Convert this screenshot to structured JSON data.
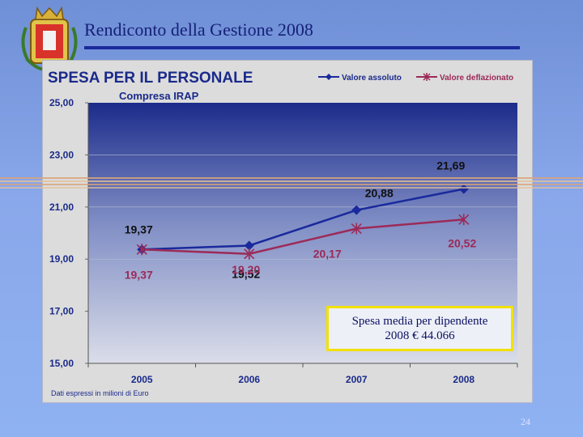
{
  "slide": {
    "title": "Rendiconto della Gestione 2008",
    "page_number": "24"
  },
  "info_box": {
    "line1": "Spesa media per dipendente",
    "line2": "2008 € 44.066"
  },
  "chart_data": {
    "type": "line",
    "title": "SPESA PER IL PERSONALE",
    "subtitle": "Compresa IRAP",
    "note": "Dati espressi in milioni di Euro",
    "categories": [
      "2005",
      "2006",
      "2007",
      "2008"
    ],
    "y_ticks": [
      "25,00",
      "23,00",
      "21,00",
      "19,00",
      "17,00",
      "15,00"
    ],
    "ylim": [
      15,
      25
    ],
    "legend_position": "top-right",
    "series": [
      {
        "name": "Valore assoluto",
        "values": [
          19.37,
          19.52,
          20.88,
          21.69
        ],
        "labels": [
          "19,37",
          "19,52",
          "20,88",
          "21,69"
        ],
        "color": "#1a2a9c",
        "marker": "diamond"
      },
      {
        "name": "Valore deflazionato",
        "values": [
          19.37,
          19.2,
          20.17,
          20.52
        ],
        "labels": [
          "19,37",
          "19,20",
          "20,17",
          "20,52"
        ],
        "color": "#9c2a58",
        "marker": "asterisk"
      }
    ]
  }
}
